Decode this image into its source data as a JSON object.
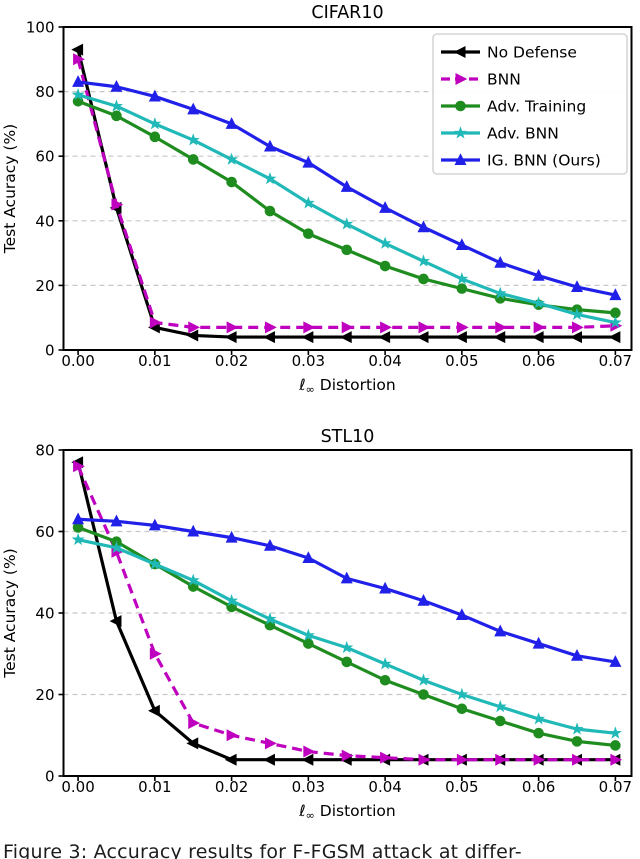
{
  "page": {
    "caption_fragment": "Figure 3: Accuracy results for F-FGSM attack at differ-"
  },
  "colors": {
    "background": "#ffffff",
    "axis": "#000000",
    "grid": "#c7c7c7",
    "legend_border": "#cccccc",
    "no_defense": "#000000",
    "bnn": "#bf00bf",
    "adv_training": "#1e8c1e",
    "adv_bnn": "#21b8b8",
    "ig_bnn": "#2020e8"
  },
  "chart_data": [
    {
      "type": "line",
      "title": "CIFAR10",
      "xlabel": "ℓ∞ Distortion",
      "ylabel": "Test Acuracy (%)",
      "xlim": [
        -0.0019,
        0.0721
      ],
      "ylim": [
        0,
        100
      ],
      "xticks": [
        0,
        0.01,
        0.02,
        0.03,
        0.04,
        0.05,
        0.06,
        0.07
      ],
      "xtick_labels": [
        "0.00",
        "0.01",
        "0.02",
        "0.03",
        "0.04",
        "0.05",
        "0.06",
        "0.07"
      ],
      "yticks": [
        0,
        20,
        40,
        60,
        80,
        100
      ],
      "grid": "dashed-horizontal",
      "legend_position": "upper-right",
      "show_legend": true,
      "x": [
        0,
        0.005,
        0.01,
        0.015,
        0.02,
        0.025,
        0.03,
        0.035,
        0.04,
        0.045,
        0.05,
        0.055,
        0.06,
        0.065,
        0.07
      ],
      "series": [
        {
          "name": "No Defense",
          "color_key": "no_defense",
          "marker": "triangle-left",
          "line": "solid",
          "values": [
            93,
            44,
            7,
            4.5,
            4,
            4,
            4,
            4,
            4,
            4,
            4,
            4,
            4,
            4,
            4
          ]
        },
        {
          "name": "BNN",
          "color_key": "bnn",
          "marker": "triangle-right",
          "line": "dashed",
          "values": [
            90,
            45,
            8.5,
            7,
            7,
            7,
            7,
            7,
            7,
            7,
            7,
            7,
            7,
            7,
            7.5
          ]
        },
        {
          "name": "Adv. Training",
          "color_key": "adv_training",
          "marker": "circle",
          "line": "solid",
          "values": [
            77,
            72.5,
            66,
            59,
            52,
            43,
            36,
            31,
            26,
            22,
            19,
            16,
            14,
            12.5,
            11.5
          ]
        },
        {
          "name": "Adv. BNN",
          "color_key": "adv_bnn",
          "marker": "star",
          "line": "solid",
          "values": [
            79,
            75.5,
            70,
            65,
            59,
            53,
            45.5,
            39,
            33,
            27.5,
            22,
            17.5,
            14.5,
            11,
            8.5
          ]
        },
        {
          "name": "IG. BNN (Ours)",
          "color_key": "ig_bnn",
          "marker": "triangle-up",
          "line": "solid",
          "values": [
            83,
            81.5,
            78.5,
            74.5,
            70,
            63,
            58,
            50.5,
            44,
            38,
            32.5,
            27,
            23,
            19.5,
            17
          ]
        }
      ]
    },
    {
      "type": "line",
      "title": "STL10",
      "xlabel": "ℓ∞ Distortion",
      "ylabel": "Test Acuracy (%)",
      "xlim": [
        -0.0019,
        0.0721
      ],
      "ylim": [
        0,
        80
      ],
      "xticks": [
        0,
        0.01,
        0.02,
        0.03,
        0.04,
        0.05,
        0.06,
        0.07
      ],
      "xtick_labels": [
        "0.00",
        "0.01",
        "0.02",
        "0.03",
        "0.04",
        "0.05",
        "0.06",
        "0.07"
      ],
      "yticks": [
        0,
        20,
        40,
        60,
        80
      ],
      "grid": "dashed-horizontal",
      "legend_position": "none",
      "show_legend": false,
      "x": [
        0,
        0.005,
        0.01,
        0.015,
        0.02,
        0.025,
        0.03,
        0.035,
        0.04,
        0.045,
        0.05,
        0.055,
        0.06,
        0.065,
        0.07
      ],
      "series": [
        {
          "name": "No Defense",
          "color_key": "no_defense",
          "marker": "triangle-left",
          "line": "solid",
          "values": [
            77,
            38,
            16,
            8,
            4,
            4,
            4,
            4,
            4,
            4,
            4,
            4,
            4,
            4,
            4
          ]
        },
        {
          "name": "BNN",
          "color_key": "bnn",
          "marker": "triangle-right",
          "line": "dashed",
          "values": [
            76,
            55,
            30,
            13,
            10,
            8,
            6,
            5,
            4.5,
            4,
            4,
            4,
            4,
            4,
            4
          ]
        },
        {
          "name": "Adv. Training",
          "color_key": "adv_training",
          "marker": "circle",
          "line": "solid",
          "values": [
            61,
            57.5,
            52,
            46.5,
            41.5,
            37,
            32.5,
            28,
            23.5,
            20,
            16.5,
            13.5,
            10.5,
            8.5,
            7.5
          ]
        },
        {
          "name": "Adv. BNN",
          "color_key": "adv_bnn",
          "marker": "star",
          "line": "solid",
          "values": [
            58,
            56,
            52,
            48,
            43,
            38.5,
            34.5,
            31.5,
            27.5,
            23.5,
            20,
            17,
            14,
            11.5,
            10.5
          ]
        },
        {
          "name": "IG. BNN (Ours)",
          "color_key": "ig_bnn",
          "marker": "triangle-up",
          "line": "solid",
          "values": [
            63,
            62.5,
            61.5,
            60,
            58.5,
            56.5,
            53.5,
            48.5,
            46,
            43,
            39.5,
            35.5,
            32.5,
            29.5,
            28
          ]
        }
      ]
    }
  ]
}
